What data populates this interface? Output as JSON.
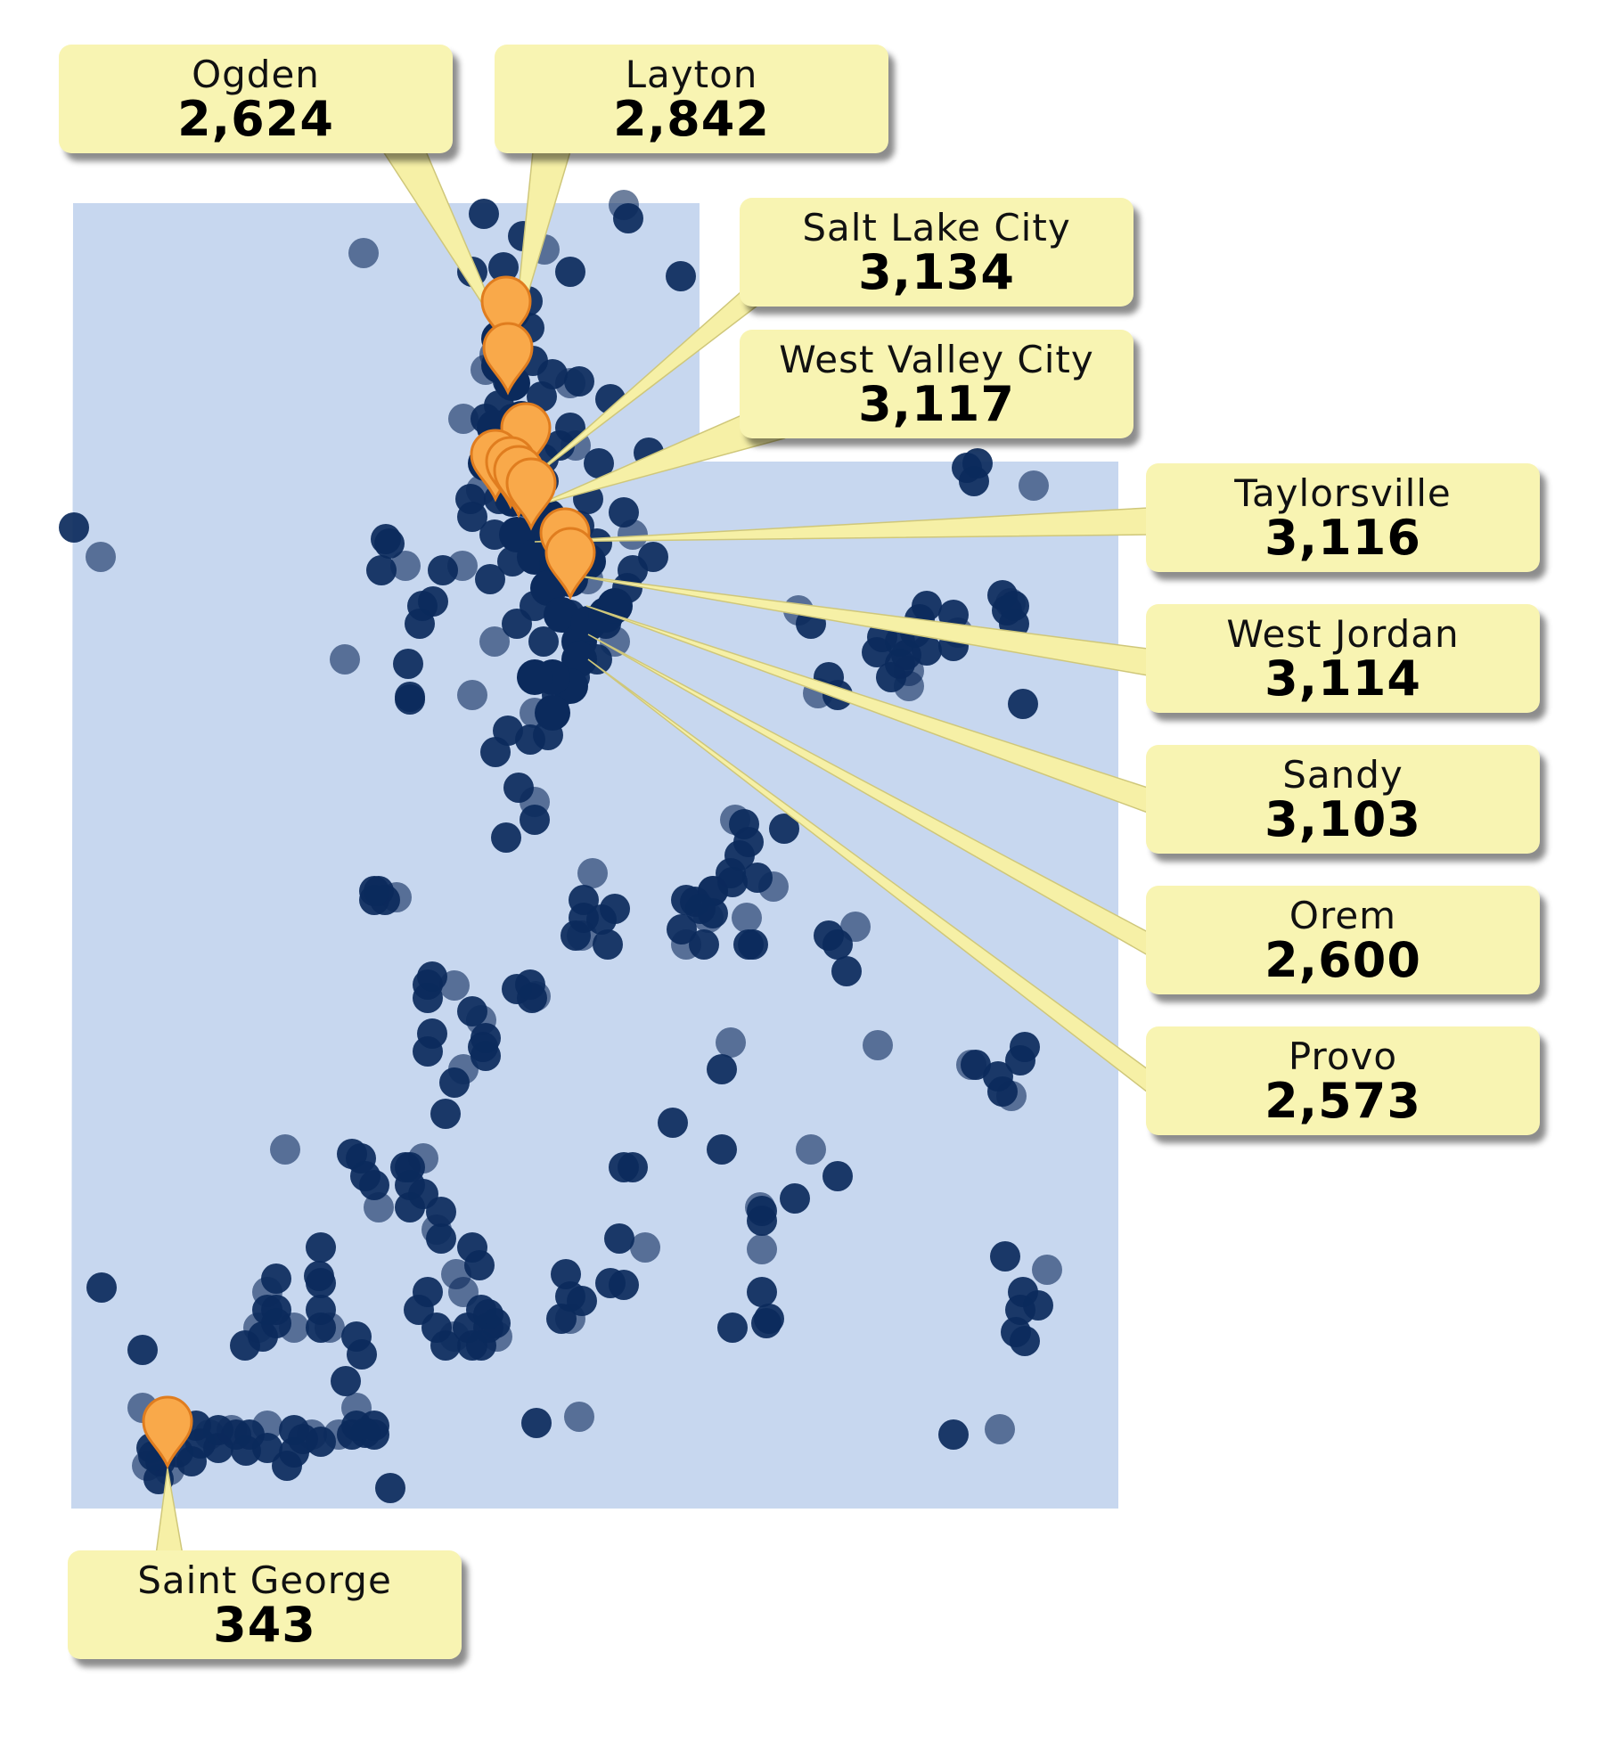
{
  "colors": {
    "state_fill": "#c7d7ef",
    "dot": "#0b2a5c",
    "pin_fill": "#f9a94a",
    "pin_stroke": "#e07d1f",
    "callout_fill": "#f8f4b2",
    "leader_fill": "#f6f0a6"
  },
  "locations": [
    {
      "city": "Ogden",
      "count": "2,624"
    },
    {
      "city": "Layton",
      "count": "2,842"
    },
    {
      "city": "Salt Lake City",
      "count": "3,134"
    },
    {
      "city": "West Valley City",
      "count": "3,117"
    },
    {
      "city": "Taylorsville",
      "count": "3,116"
    },
    {
      "city": "West Jordan",
      "count": "3,114"
    },
    {
      "city": "Sandy",
      "count": "3,103"
    },
    {
      "city": "Orem",
      "count": "2,600"
    },
    {
      "city": "Provo",
      "count": "2,573"
    },
    {
      "city": "Saint George",
      "count": "343"
    }
  ]
}
